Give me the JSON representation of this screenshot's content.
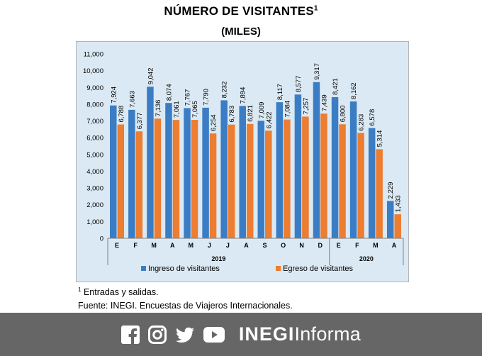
{
  "chart_data": {
    "type": "bar",
    "title": "NÚMERO DE VISITANTES",
    "title_sup": "1",
    "subtitle": "(MILES)",
    "categories": [
      "E",
      "F",
      "M",
      "A",
      "M",
      "J",
      "J",
      "A",
      "S",
      "O",
      "N",
      "D",
      "E",
      "F",
      "M",
      "A"
    ],
    "groups": [
      {
        "label": "2019",
        "count": 12
      },
      {
        "label": "2020",
        "count": 4
      }
    ],
    "series": [
      {
        "name": "Ingreso de visitantes",
        "color": "#3b7dc4",
        "values": [
          7924,
          7663,
          9042,
          8074,
          7767,
          7790,
          8232,
          7894,
          7009,
          8117,
          8577,
          9317,
          8421,
          8162,
          6578,
          2229
        ]
      },
      {
        "name": "Egreso de visitantes",
        "color": "#ed7d31",
        "values": [
          6788,
          6377,
          7136,
          7061,
          7065,
          6254,
          6783,
          6821,
          6422,
          7084,
          7257,
          7439,
          6800,
          6283,
          5314,
          1433
        ]
      }
    ],
    "ylim": [
      0,
      11000
    ],
    "yticks": [
      "0",
      "1,000",
      "2,000",
      "3,000",
      "4,000",
      "5,000",
      "6,000",
      "7,000",
      "8,000",
      "9,000",
      "10,000",
      "11,000"
    ],
    "legend_position": "bottom",
    "plot_background": "#dbe9f4"
  },
  "notes": {
    "footnote_sup": "1",
    "footnote": "Entradas y salidas.",
    "source": "Fuente: INEGI. Encuestas de Viajeros Internacionales."
  },
  "footer": {
    "brand_bold": "INEGI",
    "brand_light": "Informa",
    "icons": [
      "facebook-icon",
      "instagram-icon",
      "twitter-icon",
      "youtube-icon"
    ]
  }
}
